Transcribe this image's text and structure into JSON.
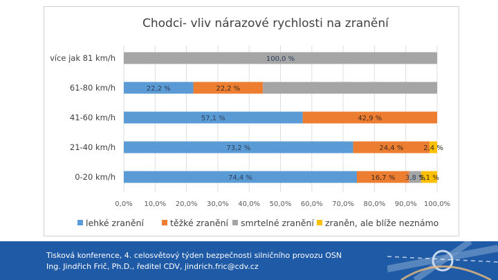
{
  "chart_data": {
    "type": "bar",
    "orientation": "horizontal",
    "stacked": true,
    "title": "Chodci- vliv nárazové rychlosti na zranění",
    "categories": [
      "více jak 81 km/h",
      "61-80 km/h",
      "41-60 km/h",
      "21-40 km/h",
      "0-20 km/h"
    ],
    "series": [
      {
        "name": "lehké zranění",
        "color": "#5b9bd5",
        "values": [
          0,
          22.2,
          57.1,
          73.2,
          74.4
        ],
        "labels": [
          "",
          "22,2 %",
          "57,1 %",
          "73,2 %",
          "74,4 %"
        ]
      },
      {
        "name": "těžké zranění",
        "color": "#ed7d31",
        "values": [
          0,
          22.2,
          42.9,
          24.4,
          16.7
        ],
        "labels": [
          "",
          "22,2 %",
          "42,9 %",
          "24,4 %",
          "16,7 %"
        ]
      },
      {
        "name": "smrtelné zranění",
        "color": "#a5a5a5",
        "values": [
          100.0,
          55.6,
          0,
          0,
          3.8
        ],
        "labels": [
          "100,0 %",
          "",
          "",
          "",
          "3,8 %"
        ]
      },
      {
        "name": "zraněn, ale blíže neznámo",
        "color": "#ffc000",
        "values": [
          0,
          0,
          0,
          2.4,
          5.1
        ],
        "labels": [
          "",
          "",
          "",
          "2,4 %",
          "5,1 %"
        ]
      }
    ],
    "xlim": [
      0,
      100
    ],
    "xticks": [
      "0,0%",
      "10,0%",
      "20,0%",
      "30,0%",
      "40,0%",
      "50,0%",
      "60,0%",
      "70,0%",
      "80,0%",
      "90,0%",
      "100,0%"
    ],
    "grid": true,
    "legend_position": "bottom"
  },
  "footer": {
    "line1": "Tisková konference, 4. celosvětový týden bezpečnosti silničního provozu OSN",
    "line2": "Ing. Jindřich Frič, Ph.D., ředitel CDV, jindrich.fric@cdv.cz"
  }
}
